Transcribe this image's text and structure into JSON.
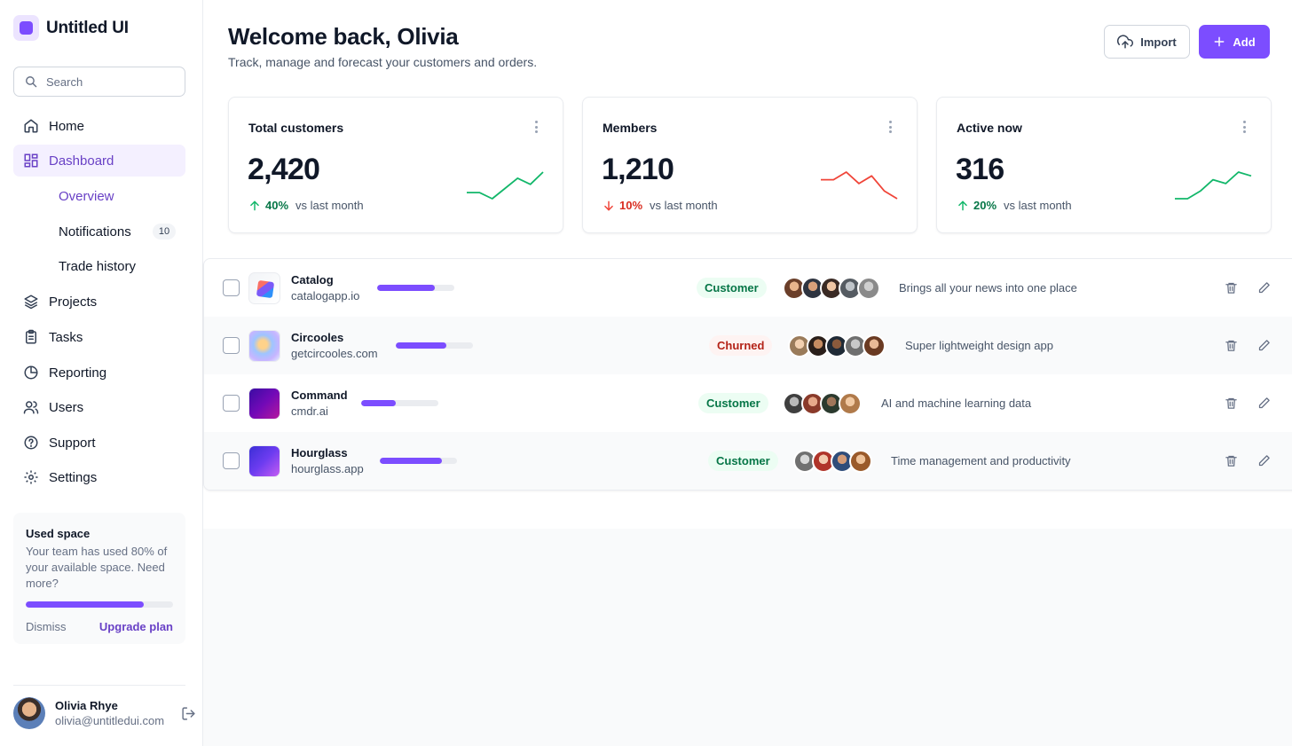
{
  "app": {
    "name": "Untitled UI"
  },
  "search": {
    "placeholder": "Search"
  },
  "nav": {
    "home": "Home",
    "dashboard": "Dashboard",
    "sub": {
      "overview": "Overview",
      "notifications": "Notifications",
      "notifications_badge": "10",
      "trade_history": "Trade history"
    },
    "projects": "Projects",
    "tasks": "Tasks",
    "reporting": "Reporting",
    "users": "Users",
    "support": "Support",
    "settings": "Settings"
  },
  "space_card": {
    "title": "Used space",
    "description": "Your team has used 80% of your available space. Need more?",
    "usage_fraction": 0.8,
    "dismiss": "Dismiss",
    "upgrade": "Upgrade plan"
  },
  "user": {
    "name": "Olivia Rhye",
    "email": "olivia@untitledui.com"
  },
  "header": {
    "title": "Welcome back, Olivia",
    "subtitle": "Track, manage and forecast your customers and orders.",
    "import_label": "Import",
    "add_label": "Add"
  },
  "stats": [
    {
      "label": "Total customers",
      "value": "2,420",
      "change": "40%",
      "direction": "up",
      "compare": "vs last month",
      "trend": [
        8,
        8,
        5,
        10,
        15,
        12,
        18
      ]
    },
    {
      "label": "Members",
      "value": "1,210",
      "change": "10%",
      "direction": "down",
      "compare": "vs last month",
      "trend": [
        12,
        12,
        14,
        11,
        13,
        9,
        7
      ]
    },
    {
      "label": "Active now",
      "value": "316",
      "change": "20%",
      "direction": "up",
      "compare": "vs last month",
      "trend": [
        6,
        6,
        8,
        11,
        10,
        13,
        12
      ]
    }
  ],
  "colors": {
    "accent": "#7c4dff",
    "positive": "#12b76a",
    "negative": "#f04438"
  },
  "companies": [
    {
      "name": "Catalog",
      "url": "catalogapp.io",
      "progress": 0.75,
      "status": "Customer",
      "status_type": "customer",
      "about": "Brings all your news into one place",
      "logo": "catalog"
    },
    {
      "name": "Circooles",
      "url": "getcircooles.com",
      "progress": 0.65,
      "status": "Churned",
      "status_type": "churned",
      "about": "Super lightweight design app",
      "logo": "circooles"
    },
    {
      "name": "Command",
      "url": "cmdr.ai",
      "progress": 0.45,
      "status": "Customer",
      "status_type": "customer",
      "about": "AI and machine learning data",
      "logo": "command"
    },
    {
      "name": "Hourglass",
      "url": "hourglass.app",
      "progress": 0.8,
      "status": "Customer",
      "status_type": "customer",
      "about": "Time management and productivity",
      "logo": "hourglass"
    }
  ]
}
